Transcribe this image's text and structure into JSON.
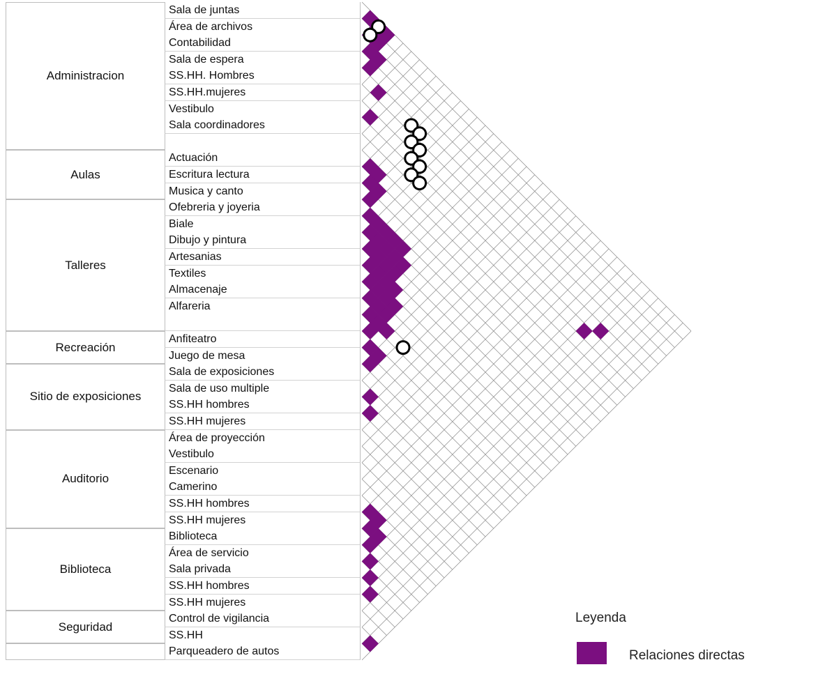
{
  "groups": [
    {
      "name": "Administracion",
      "rows": [
        "Sala de juntas",
        "Área de archivos",
        "Contabilidad",
        "Sala de espera",
        "SS.HH. Hombres",
        "SS.HH.mujeres",
        "Vestibulo",
        "Sala coordinadores",
        ""
      ]
    },
    {
      "name": "Aulas",
      "rows": [
        "Actuación",
        "Escritura lectura",
        "Musica y canto"
      ]
    },
    {
      "name": "Talleres",
      "rows": [
        "Ofebreria y joyeria",
        "Biale",
        "Dibujo y pintura",
        "Artesanias",
        "Textiles",
        "Almacenaje",
        "Alfareria",
        ""
      ]
    },
    {
      "name": "Recreación",
      "rows": [
        "Anfiteatro",
        "Juego de mesa"
      ]
    },
    {
      "name": "Sitio de exposiciones",
      "rows": [
        "Sala de exposiciones",
        "Sala de uso multiple",
        "SS.HH hombres",
        "SS.HH mujeres"
      ]
    },
    {
      "name": "Auditorio",
      "rows": [
        "Área de proyección",
        "Vestibulo",
        "Escenario",
        "Camerino",
        "SS.HH hombres",
        "SS.HH mujeres"
      ]
    },
    {
      "name": "Biblioteca",
      "rows": [
        "Biblioteca",
        "Área de servicio",
        "Sala privada",
        "SS.HH hombres",
        "SS.HH mujeres"
      ]
    },
    {
      "name": "Seguridad",
      "rows": [
        "Control de vigilancia",
        "SS.HH"
      ]
    },
    {
      "name": "",
      "rows": [
        "Parqueadero de autos"
      ]
    }
  ],
  "legend": {
    "title": "Leyenda",
    "items": [
      {
        "label": "Relaciones directas",
        "color": "#7b0f80"
      }
    ]
  },
  "colors": {
    "direct_relation": "#7b0f80",
    "grid": "#8a8a8a"
  },
  "relations": {
    "direct": [
      [
        0,
        1
      ],
      [
        0,
        2
      ],
      [
        0,
        3
      ],
      [
        1,
        2
      ],
      [
        1,
        3
      ],
      [
        2,
        3
      ],
      [
        2,
        4
      ],
      [
        3,
        4
      ],
      [
        4,
        6
      ],
      [
        6,
        7
      ],
      [
        9,
        10
      ],
      [
        9,
        11
      ],
      [
        10,
        11
      ],
      [
        10,
        12
      ],
      [
        11,
        12
      ],
      [
        12,
        13
      ],
      [
        12,
        14
      ],
      [
        12,
        15
      ],
      [
        12,
        16
      ],
      [
        12,
        17
      ],
      [
        13,
        14
      ],
      [
        13,
        15
      ],
      [
        13,
        16
      ],
      [
        13,
        17
      ],
      [
        13,
        18
      ],
      [
        14,
        15
      ],
      [
        14,
        16
      ],
      [
        14,
        17
      ],
      [
        14,
        18
      ],
      [
        15,
        16
      ],
      [
        15,
        17
      ],
      [
        15,
        18
      ],
      [
        15,
        19
      ],
      [
        16,
        17
      ],
      [
        16,
        18
      ],
      [
        16,
        19
      ],
      [
        16,
        20
      ],
      [
        17,
        18
      ],
      [
        17,
        19
      ],
      [
        17,
        20
      ],
      [
        18,
        19
      ],
      [
        18,
        20
      ],
      [
        18,
        21
      ],
      [
        19,
        20
      ],
      [
        20,
        21
      ],
      [
        20,
        22
      ],
      [
        21,
        22
      ],
      [
        23,
        24
      ],
      [
        24,
        25
      ],
      [
        30,
        31
      ],
      [
        30,
        32
      ],
      [
        31,
        32
      ],
      [
        31,
        33
      ],
      [
        32,
        33
      ],
      [
        33,
        34
      ],
      [
        34,
        35
      ],
      [
        35,
        36
      ],
      [
        38,
        39
      ],
      [
        38,
        40
      ],
      [
        39,
        40
      ],
      [
        40,
        41
      ],
      [
        40,
        42
      ],
      [
        41,
        42
      ],
      [
        42,
        43
      ],
      [
        45,
        46
      ],
      [
        46,
        47
      ],
      [
        48,
        49
      ],
      [
        48,
        50
      ],
      [
        49,
        50
      ],
      [
        50,
        51
      ],
      [
        49,
        51
      ],
      [
        53,
        54
      ],
      [
        6,
        33
      ],
      [
        5,
        34
      ]
    ],
    "special": [
      [
        0,
        2
      ],
      [
        1,
        2
      ],
      [
        4,
        10
      ],
      [
        4,
        11
      ],
      [
        5,
        11
      ],
      [
        5,
        12
      ],
      [
        6,
        12
      ],
      [
        6,
        13
      ],
      [
        7,
        13
      ],
      [
        7,
        14
      ],
      [
        18,
        23
      ]
    ]
  }
}
